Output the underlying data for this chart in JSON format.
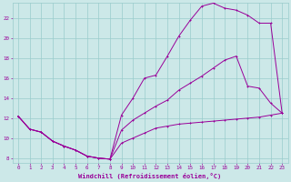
{
  "xlabel": "Windchill (Refroidissement éolien,°C)",
  "bg_color": "#cce8e8",
  "grid_color": "#99cccc",
  "line_color": "#990099",
  "xlim": [
    -0.5,
    23.5
  ],
  "ylim": [
    7.5,
    23.5
  ],
  "yticks": [
    8,
    10,
    12,
    14,
    16,
    18,
    20,
    22
  ],
  "xticks": [
    0,
    1,
    2,
    3,
    4,
    5,
    6,
    7,
    8,
    9,
    10,
    11,
    12,
    13,
    14,
    15,
    16,
    17,
    18,
    19,
    20,
    21,
    22,
    23
  ],
  "curve1_x": [
    0,
    1,
    2,
    3,
    4,
    5,
    6,
    7,
    8,
    9,
    10,
    11,
    12,
    13,
    14,
    15,
    16,
    17,
    18,
    19,
    20,
    21,
    22,
    23
  ],
  "curve1_y": [
    12.2,
    10.9,
    10.6,
    9.7,
    9.2,
    8.8,
    8.2,
    8.0,
    7.9,
    12.3,
    14.0,
    16.0,
    16.3,
    18.2,
    20.2,
    21.8,
    23.2,
    23.5,
    23.0,
    22.8,
    22.3,
    21.5,
    21.5,
    12.5
  ],
  "curve2_x": [
    0,
    1,
    2,
    3,
    4,
    5,
    6,
    7,
    8,
    9,
    10,
    11,
    12,
    13,
    14,
    15,
    16,
    17,
    18,
    19,
    20,
    21,
    22,
    23
  ],
  "curve2_y": [
    12.2,
    10.9,
    10.6,
    9.7,
    9.2,
    8.8,
    8.2,
    8.0,
    7.9,
    10.8,
    11.8,
    12.5,
    13.2,
    13.8,
    14.8,
    15.5,
    16.2,
    17.0,
    17.8,
    18.2,
    15.2,
    15.0,
    13.5,
    12.5
  ],
  "curve3_x": [
    0,
    1,
    2,
    3,
    4,
    5,
    6,
    7,
    8,
    9,
    10,
    11,
    12,
    13,
    14,
    15,
    16,
    17,
    18,
    19,
    20,
    21,
    22,
    23
  ],
  "curve3_y": [
    12.2,
    10.9,
    10.6,
    9.7,
    9.2,
    8.8,
    8.2,
    8.0,
    7.9,
    9.5,
    10.0,
    10.5,
    11.0,
    11.2,
    11.4,
    11.5,
    11.6,
    11.7,
    11.8,
    11.9,
    12.0,
    12.1,
    12.3,
    12.5
  ]
}
